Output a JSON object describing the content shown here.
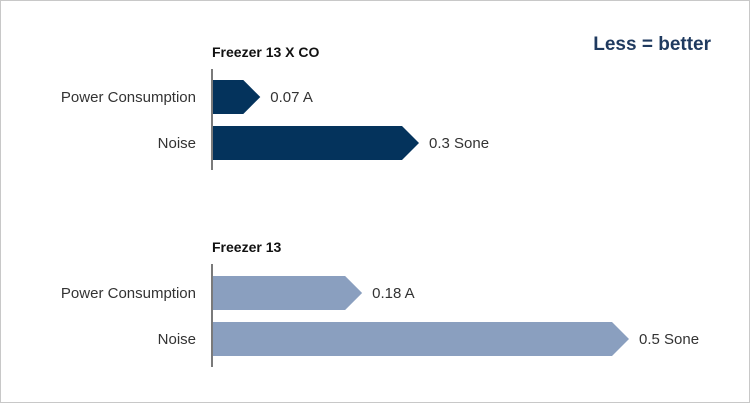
{
  "note": "Less = better",
  "colors": {
    "group1": "#04335c",
    "group2": "#8a9fbf",
    "note": "#1f3a5f",
    "text": "#333333",
    "axis": "#222222"
  },
  "chart_data": {
    "type": "bar",
    "orientation": "horizontal",
    "categories": [
      "Power Consumption",
      "Noise"
    ],
    "groups": [
      {
        "name": "Freezer 13 X CO",
        "values": [
          0.07,
          0.3
        ],
        "labels": [
          "0.07 A",
          "0.3 Sone"
        ]
      },
      {
        "name": "Freezer 13",
        "values": [
          0.18,
          0.5
        ],
        "labels": [
          "0.18 A",
          "0.5 Sone"
        ]
      }
    ]
  }
}
